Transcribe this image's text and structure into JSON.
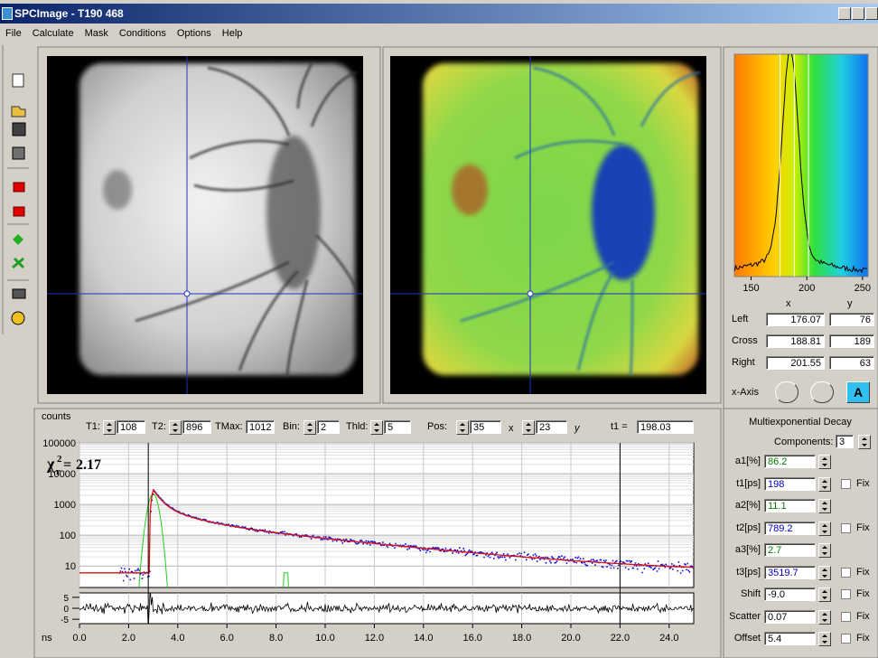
{
  "window": {
    "title": "SPCImage - T190 468"
  },
  "menu": [
    "File",
    "Calculate",
    "Mask",
    "Conditions",
    "Options",
    "Help"
  ],
  "histogram": {
    "xlim": [
      135,
      255
    ],
    "xticks": [
      150,
      200,
      250
    ],
    "columns": [
      "x",
      "y"
    ],
    "rows": [
      {
        "label": "Left",
        "x": 176.07,
        "y": 76
      },
      {
        "label": "Cross",
        "x": 188.81,
        "y": 189
      },
      {
        "label": "Right",
        "x": 201.55,
        "y": 63
      }
    ],
    "axis_label": "x-Axis"
  },
  "controls": {
    "t1_label": "T1:",
    "t1": 108,
    "t2_label": "T2:",
    "t2": 896,
    "tmax_label": "TMax:",
    "tmax": 1012,
    "bin_label": "Bin:",
    "bin": 2,
    "thld_label": "Thld:",
    "thld": 5,
    "pos_label": "Pos:",
    "pos_x": 35,
    "x_label": "x",
    "pos_y": 23,
    "y_label": "y",
    "t1_eq_label": "t1 =",
    "t1_eq": 198.03
  },
  "decay": {
    "y_label": "counts",
    "x_label": "ns",
    "log_y": true,
    "ylim": [
      2,
      100000
    ],
    "yticks": [
      10,
      100,
      1000,
      10000,
      100000
    ],
    "xlim": [
      0,
      25
    ],
    "xticks": [
      {
        "value": 0,
        "label": "0.0"
      },
      {
        "value": 2,
        "label": "2.0"
      },
      {
        "value": 4,
        "label": "4.0"
      },
      {
        "value": 6,
        "label": "6.0"
      },
      {
        "value": 8,
        "label": "8.0"
      },
      {
        "value": 10,
        "label": "10.0"
      },
      {
        "value": 12,
        "label": "12.0"
      },
      {
        "value": 14,
        "label": "14.0"
      },
      {
        "value": 16,
        "label": "16.0"
      },
      {
        "value": 18,
        "label": "18.0"
      },
      {
        "value": 20,
        "label": "20.0"
      },
      {
        "value": 22,
        "label": "22.0"
      },
      {
        "value": 24,
        "label": "24.0"
      }
    ],
    "chi_symbol": "χ",
    "chi_subscript": "r",
    "chi_superscript": "2",
    "chi_equals": "=",
    "chi_value": 2.17,
    "residual_ylim": [
      -7,
      7
    ],
    "residual_yticks": [
      5,
      0,
      -5
    ]
  },
  "fit": {
    "title": "Multiexponential Decay",
    "components_label": "Components:",
    "components": 3,
    "fix_label": "Fix",
    "params": [
      {
        "label": "a1[%]",
        "value": 86.2,
        "color": "#008000",
        "has_fix": false
      },
      {
        "label": "t1[ps]",
        "value": 198,
        "color": "#0000c0",
        "has_fix": true
      },
      {
        "label": "a2[%]",
        "value": 11.1,
        "color": "#008000",
        "has_fix": false
      },
      {
        "label": "t2[ps]",
        "value": 789.2,
        "color": "#0000c0",
        "has_fix": true
      },
      {
        "label": "a3[%]",
        "value": 2.7,
        "color": "#008000",
        "has_fix": false
      },
      {
        "label": "t3[ps]",
        "value": 3519.7,
        "color": "#0000c0",
        "has_fix": true
      },
      {
        "label": "Shift",
        "value": "-9.0",
        "color": "#000000",
        "has_fix": true
      },
      {
        "label": "Scatter",
        "value": 0.07,
        "color": "#000000",
        "has_fix": true
      },
      {
        "label": "Offset",
        "value": 5.4,
        "color": "#000000",
        "has_fix": true
      }
    ]
  }
}
